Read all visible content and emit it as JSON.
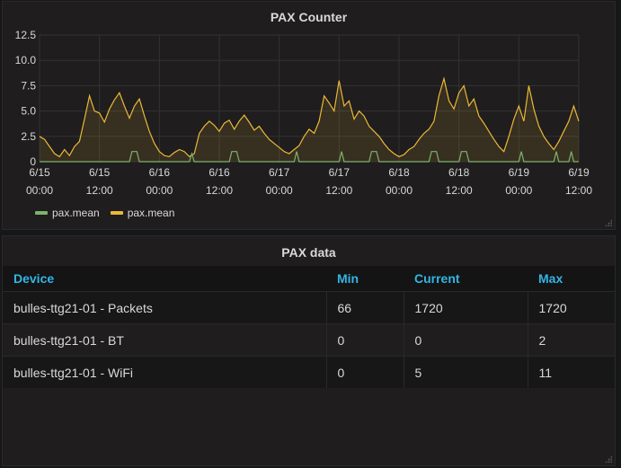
{
  "chart_panel": {
    "title": "PAX Counter"
  },
  "chart_data": {
    "type": "line",
    "title": "PAX Counter",
    "ylim": [
      0,
      12.5
    ],
    "yticks": [
      "0",
      "2.5",
      "5.0",
      "7.5",
      "10.0",
      "12.5"
    ],
    "xlim_hours": [
      0,
      108
    ],
    "xticks": [
      {
        "l1": "6/15",
        "l2": "00:00"
      },
      {
        "l1": "6/15",
        "l2": "12:00"
      },
      {
        "l1": "6/16",
        "l2": "00:00"
      },
      {
        "l1": "6/16",
        "l2": "12:00"
      },
      {
        "l1": "6/17",
        "l2": "00:00"
      },
      {
        "l1": "6/17",
        "l2": "12:00"
      },
      {
        "l1": "6/18",
        "l2": "00:00"
      },
      {
        "l1": "6/18",
        "l2": "12:00"
      },
      {
        "l1": "6/19",
        "l2": "00:00"
      },
      {
        "l1": "6/19",
        "l2": "12:00"
      }
    ],
    "grid": true,
    "legend_position": "bottom-left",
    "series": [
      {
        "name": "pax.mean",
        "color": "#7eb26d",
        "points": [
          [
            0,
            0
          ],
          [
            18,
            0
          ],
          [
            18.5,
            1
          ],
          [
            19.5,
            1
          ],
          [
            20,
            0
          ],
          [
            30,
            0
          ],
          [
            30.5,
            0.8
          ],
          [
            31,
            0
          ],
          [
            38,
            0
          ],
          [
            38.5,
            1
          ],
          [
            39.5,
            1
          ],
          [
            40,
            0
          ],
          [
            48,
            0
          ],
          [
            51,
            0
          ],
          [
            51.5,
            1
          ],
          [
            52,
            0
          ],
          [
            60,
            0
          ],
          [
            60.5,
            1
          ],
          [
            61,
            0
          ],
          [
            66,
            0
          ],
          [
            66.5,
            1
          ],
          [
            67.5,
            1
          ],
          [
            68,
            0
          ],
          [
            78,
            0
          ],
          [
            78.5,
            1
          ],
          [
            79.5,
            1
          ],
          [
            80,
            0
          ],
          [
            84,
            0
          ],
          [
            84.5,
            1
          ],
          [
            85.5,
            1
          ],
          [
            86,
            0
          ],
          [
            96,
            0
          ],
          [
            96.5,
            1
          ],
          [
            97,
            0
          ],
          [
            103,
            0
          ],
          [
            103.5,
            1
          ],
          [
            104,
            0
          ],
          [
            106,
            0
          ],
          [
            106.5,
            1
          ],
          [
            107,
            0
          ],
          [
            108,
            0
          ]
        ]
      },
      {
        "name": "pax.mean",
        "color": "#eab839",
        "points": [
          [
            0,
            2.5
          ],
          [
            1,
            2.2
          ],
          [
            2,
            1.5
          ],
          [
            3,
            0.8
          ],
          [
            4,
            0.5
          ],
          [
            5,
            1.2
          ],
          [
            6,
            0.6
          ],
          [
            7,
            1.5
          ],
          [
            8,
            2.0
          ],
          [
            9,
            4.2
          ],
          [
            10,
            6.5
          ],
          [
            11,
            5.0
          ],
          [
            12,
            4.8
          ],
          [
            13,
            3.9
          ],
          [
            14,
            5.2
          ],
          [
            15,
            6.1
          ],
          [
            16,
            6.8
          ],
          [
            17,
            5.5
          ],
          [
            18,
            4.3
          ],
          [
            19,
            5.5
          ],
          [
            20,
            6.2
          ],
          [
            21,
            4.5
          ],
          [
            22,
            3.0
          ],
          [
            23,
            1.8
          ],
          [
            24,
            1.0
          ],
          [
            25,
            0.6
          ],
          [
            26,
            0.5
          ],
          [
            27,
            0.9
          ],
          [
            28,
            1.2
          ],
          [
            29,
            1.0
          ],
          [
            30,
            0.5
          ],
          [
            31,
            0.8
          ],
          [
            32,
            2.8
          ],
          [
            33,
            3.5
          ],
          [
            34,
            4.0
          ],
          [
            35,
            3.6
          ],
          [
            36,
            3.0
          ],
          [
            37,
            3.8
          ],
          [
            38,
            4.1
          ],
          [
            39,
            3.2
          ],
          [
            40,
            4.0
          ],
          [
            41,
            4.6
          ],
          [
            42,
            3.9
          ],
          [
            43,
            3.1
          ],
          [
            44,
            3.5
          ],
          [
            45,
            2.8
          ],
          [
            46,
            2.2
          ],
          [
            47,
            1.8
          ],
          [
            48,
            1.4
          ],
          [
            49,
            1.0
          ],
          [
            50,
            0.8
          ],
          [
            51,
            1.2
          ],
          [
            52,
            1.6
          ],
          [
            53,
            2.5
          ],
          [
            54,
            3.2
          ],
          [
            55,
            2.8
          ],
          [
            56,
            4.0
          ],
          [
            57,
            6.5
          ],
          [
            58,
            5.8
          ],
          [
            59,
            5.0
          ],
          [
            60,
            8.0
          ],
          [
            61,
            5.5
          ],
          [
            62,
            6.0
          ],
          [
            63,
            4.2
          ],
          [
            64,
            5.0
          ],
          [
            65,
            4.5
          ],
          [
            66,
            3.5
          ],
          [
            67,
            3.0
          ],
          [
            68,
            2.5
          ],
          [
            69,
            1.8
          ],
          [
            70,
            1.2
          ],
          [
            71,
            0.8
          ],
          [
            72,
            0.5
          ],
          [
            73,
            0.7
          ],
          [
            74,
            1.2
          ],
          [
            75,
            1.5
          ],
          [
            76,
            2.2
          ],
          [
            77,
            2.8
          ],
          [
            78,
            3.2
          ],
          [
            79,
            4.0
          ],
          [
            80,
            6.5
          ],
          [
            81,
            8.2
          ],
          [
            82,
            6.0
          ],
          [
            83,
            5.2
          ],
          [
            84,
            6.8
          ],
          [
            85,
            7.5
          ],
          [
            86,
            5.5
          ],
          [
            87,
            6.2
          ],
          [
            88,
            4.5
          ],
          [
            89,
            3.8
          ],
          [
            90,
            3.0
          ],
          [
            91,
            2.2
          ],
          [
            92,
            1.5
          ],
          [
            93,
            1.0
          ],
          [
            94,
            2.5
          ],
          [
            95,
            4.2
          ],
          [
            96,
            5.5
          ],
          [
            97,
            4.0
          ],
          [
            98,
            7.5
          ],
          [
            99,
            5.2
          ],
          [
            100,
            3.5
          ],
          [
            101,
            2.5
          ],
          [
            102,
            1.8
          ],
          [
            103,
            1.2
          ],
          [
            104,
            2.0
          ],
          [
            105,
            3.0
          ],
          [
            106,
            4.0
          ],
          [
            107,
            5.5
          ],
          [
            108,
            4.0
          ]
        ],
        "fill": true
      }
    ]
  },
  "table_panel": {
    "title": "PAX data",
    "columns": [
      "Device",
      "Min",
      "Current",
      "Max"
    ],
    "rows": [
      [
        "bulles-ttg21-01 - Packets",
        "66",
        "1720",
        "1720"
      ],
      [
        "bulles-ttg21-01 - BT",
        "0",
        "0",
        "2"
      ],
      [
        "bulles-ttg21-01 - WiFi",
        "0",
        "5",
        "11"
      ]
    ]
  },
  "icons": {
    "resize": "resize-handle-icon"
  }
}
